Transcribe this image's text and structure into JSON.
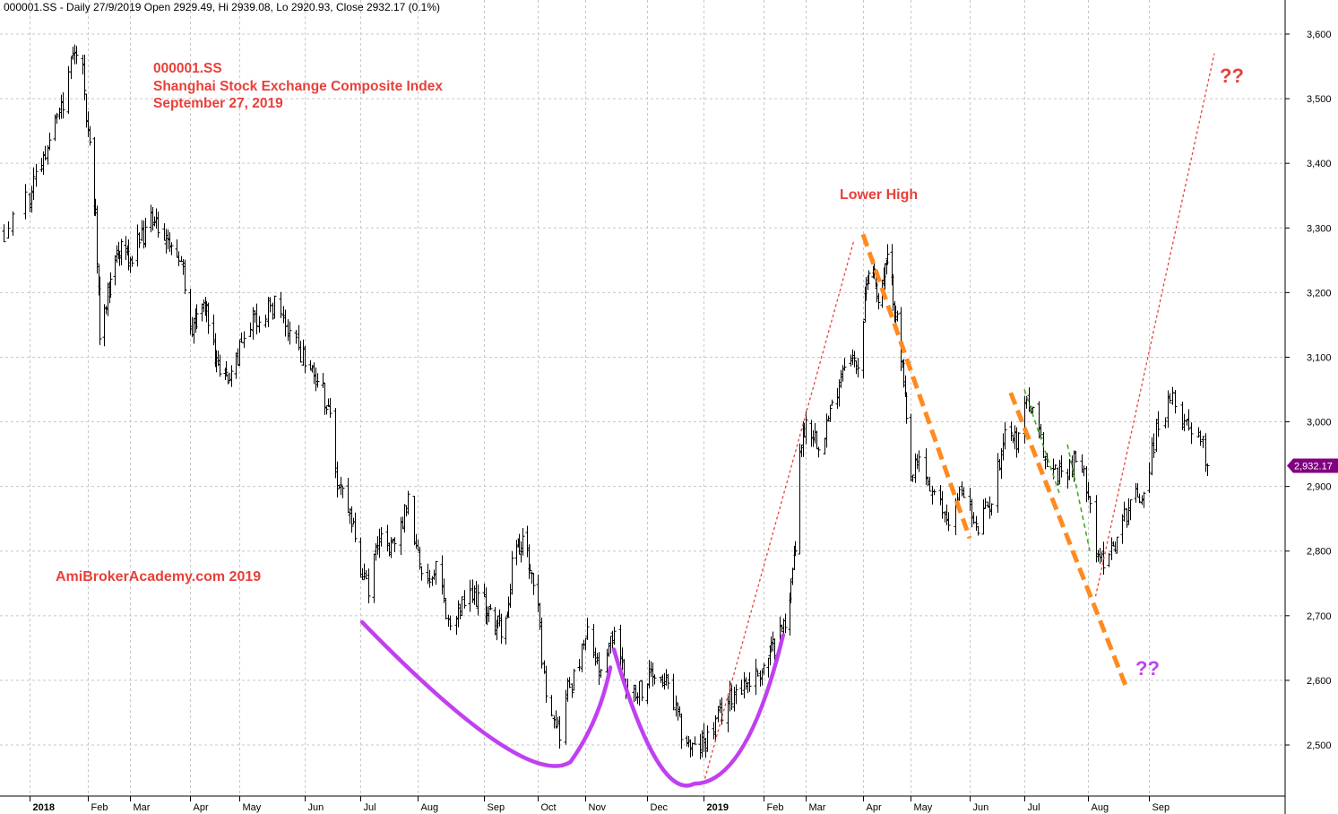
{
  "header": {
    "info": "000001.SS - Daily 27/9/2019 Open 2929.49, Hi 2939.08, Lo 2920.93, Close 2932.17 (0.1%)"
  },
  "annotations": {
    "title_lines": [
      "000001.SS",
      "Shanghai Stock Exchange Composite Index",
      "September 27, 2019"
    ],
    "watermark": "AmiBrokerAcademy.com  2019",
    "lower_high": "Lower High",
    "question_red": "??",
    "question_purple": "??"
  },
  "colors": {
    "candle": "#000000",
    "grid": "#c8c8c8",
    "annotation_red": "#e8403a",
    "trend_red": "#e8403a",
    "trend_orange": "#ff8a1f",
    "trend_green": "#44aa22",
    "pattern_purple": "#c040f0",
    "price_badge": "#800080"
  },
  "chart_data": {
    "type": "candlestick",
    "symbol": "000001.SS",
    "ylim": [
      2420,
      3620
    ],
    "y_ticks": [
      2500,
      2600,
      2700,
      2800,
      2900,
      3000,
      3100,
      3200,
      3300,
      3400,
      3500,
      3600
    ],
    "y_tick_labels": [
      "2,500",
      "2,600",
      "2,700",
      "2,800",
      "2,900",
      "3,000",
      "3,100",
      "3,200",
      "3,300",
      "3,400",
      "3,500",
      "3,600"
    ],
    "last_price": 2932.17,
    "last_price_label": "2,932.17",
    "x_ticks": [
      {
        "label": "2018",
        "date": "2018-01-02",
        "bold": true
      },
      {
        "label": "Feb",
        "date": "2018-02-01"
      },
      {
        "label": "Mar",
        "date": "2018-03-01"
      },
      {
        "label": "Apr",
        "date": "2018-04-02"
      },
      {
        "label": "May",
        "date": "2018-05-02"
      },
      {
        "label": "Jun",
        "date": "2018-06-01"
      },
      {
        "label": "Jul",
        "date": "2018-07-02"
      },
      {
        "label": "Aug",
        "date": "2018-08-01"
      },
      {
        "label": "Sep",
        "date": "2018-09-03"
      },
      {
        "label": "Oct",
        "date": "2018-10-08"
      },
      {
        "label": "Nov",
        "date": "2018-11-01"
      },
      {
        "label": "Dec",
        "date": "2018-12-03"
      },
      {
        "label": "2019",
        "date": "2019-01-02",
        "bold": true
      },
      {
        "label": "Feb",
        "date": "2019-02-01"
      },
      {
        "label": "Mar",
        "date": "2019-03-01"
      },
      {
        "label": "Apr",
        "date": "2019-04-01"
      },
      {
        "label": "May",
        "date": "2019-05-06"
      },
      {
        "label": "Jun",
        "date": "2019-06-03"
      },
      {
        "label": "Jul",
        "date": "2019-07-01"
      },
      {
        "label": "Aug",
        "date": "2019-08-01"
      },
      {
        "label": "Sep",
        "date": "2019-09-02"
      }
    ],
    "price_path": [
      [
        "2017-12-27",
        3290
      ],
      [
        "2018-01-02",
        3350
      ],
      [
        "2018-01-10",
        3420
      ],
      [
        "2018-01-18",
        3480
      ],
      [
        "2018-01-24",
        3560
      ],
      [
        "2018-01-29",
        3540
      ],
      [
        "2018-02-01",
        3450
      ],
      [
        "2018-02-06",
        3320
      ],
      [
        "2018-02-09",
        3140
      ],
      [
        "2018-02-12",
        3160
      ],
      [
        "2018-02-14",
        3200
      ],
      [
        "2018-02-22",
        3270
      ],
      [
        "2018-03-02",
        3260
      ],
      [
        "2018-03-12",
        3310
      ],
      [
        "2018-03-20",
        3290
      ],
      [
        "2018-03-28",
        3240
      ],
      [
        "2018-04-03",
        3140
      ],
      [
        "2018-04-10",
        3190
      ],
      [
        "2018-04-20",
        3070
      ],
      [
        "2018-04-27",
        3080
      ],
      [
        "2018-05-08",
        3150
      ],
      [
        "2018-05-18",
        3180
      ],
      [
        "2018-05-25",
        3140
      ],
      [
        "2018-06-01",
        3090
      ],
      [
        "2018-06-08",
        3070
      ],
      [
        "2018-06-13",
        3030
      ],
      [
        "2018-06-15",
        3010
      ],
      [
        "2018-06-19",
        2900
      ],
      [
        "2018-06-25",
        2870
      ],
      [
        "2018-07-02",
        2780
      ],
      [
        "2018-07-06",
        2740
      ],
      [
        "2018-07-13",
        2830
      ],
      [
        "2018-07-20",
        2800
      ],
      [
        "2018-07-27",
        2880
      ],
      [
        "2018-08-03",
        2750
      ],
      [
        "2018-08-10",
        2780
      ],
      [
        "2018-08-17",
        2680
      ],
      [
        "2018-08-24",
        2720
      ],
      [
        "2018-08-31",
        2730
      ],
      [
        "2018-09-07",
        2700
      ],
      [
        "2018-09-14",
        2680
      ],
      [
        "2018-09-19",
        2700
      ],
      [
        "2018-09-21",
        2790
      ],
      [
        "2018-09-28",
        2820
      ],
      [
        "2018-10-08",
        2720
      ],
      [
        "2018-10-11",
        2600
      ],
      [
        "2018-10-16",
        2550
      ],
      [
        "2018-10-19",
        2520
      ],
      [
        "2018-10-23",
        2590
      ],
      [
        "2018-10-26",
        2600
      ],
      [
        "2018-11-02",
        2670
      ],
      [
        "2018-11-09",
        2600
      ],
      [
        "2018-11-16",
        2680
      ],
      [
        "2018-11-23",
        2580
      ],
      [
        "2018-11-30",
        2590
      ],
      [
        "2018-12-07",
        2610
      ],
      [
        "2018-12-14",
        2590
      ],
      [
        "2018-12-21",
        2520
      ],
      [
        "2018-12-28",
        2490
      ],
      [
        "2019-01-04",
        2510
      ],
      [
        "2019-01-11",
        2550
      ],
      [
        "2019-01-18",
        2590
      ],
      [
        "2019-01-25",
        2600
      ],
      [
        "2019-02-01",
        2620
      ],
      [
        "2019-02-15",
        2690
      ],
      [
        "2019-02-22",
        2800
      ],
      [
        "2019-02-25",
        2960
      ],
      [
        "2019-03-01",
        3000
      ],
      [
        "2019-03-08",
        2970
      ],
      [
        "2019-03-15",
        3020
      ],
      [
        "2019-03-22",
        3100
      ],
      [
        "2019-03-29",
        3090
      ],
      [
        "2019-04-04",
        3230
      ],
      [
        "2019-04-08",
        3240
      ],
      [
        "2019-04-12",
        3190
      ],
      [
        "2019-04-19",
        3250
      ],
      [
        "2019-04-25",
        3170
      ],
      [
        "2019-04-30",
        3080
      ],
      [
        "2019-05-06",
        2910
      ],
      [
        "2019-05-10",
        2940
      ],
      [
        "2019-05-17",
        2880
      ],
      [
        "2019-05-24",
        2850
      ],
      [
        "2019-05-31",
        2900
      ],
      [
        "2019-06-06",
        2830
      ],
      [
        "2019-06-14",
        2880
      ],
      [
        "2019-06-21",
        2990
      ],
      [
        "2019-06-28",
        2970
      ],
      [
        "2019-07-01",
        3040
      ],
      [
        "2019-07-05",
        3010
      ],
      [
        "2019-07-12",
        2930
      ],
      [
        "2019-07-19",
        2920
      ],
      [
        "2019-07-26",
        2940
      ],
      [
        "2019-08-01",
        2900
      ],
      [
        "2019-08-06",
        2780
      ],
      [
        "2019-08-09",
        2790
      ],
      [
        "2019-08-16",
        2820
      ],
      [
        "2019-08-23",
        2880
      ],
      [
        "2019-08-30",
        2890
      ],
      [
        "2019-09-06",
        3000
      ],
      [
        "2019-09-12",
        3030
      ],
      [
        "2019-09-18",
        3000
      ],
      [
        "2019-09-24",
        2980
      ],
      [
        "2019-09-27",
        2932
      ]
    ],
    "trendlines": [
      {
        "color": "red",
        "style": "dotted",
        "from": [
          "2019-01-02",
          2440
        ],
        "to": [
          "2019-03-27",
          3280
        ]
      },
      {
        "color": "red",
        "style": "dotted",
        "from": [
          "2019-08-05",
          2730
        ],
        "to": [
          "2019-09-30",
          3570
        ]
      },
      {
        "color": "orange",
        "style": "dashed",
        "from": [
          "2019-04-01",
          3290
        ],
        "to": [
          "2019-06-03",
          2820
        ]
      },
      {
        "color": "orange",
        "style": "dashed",
        "from": [
          "2019-06-24",
          3045
        ],
        "to": [
          "2019-08-21",
          2590
        ]
      },
      {
        "color": "green",
        "style": "dashed",
        "from": [
          "2019-07-01",
          3050
        ],
        "to": [
          "2019-07-18",
          2890
        ]
      },
      {
        "color": "green",
        "style": "dashed",
        "from": [
          "2019-07-22",
          2965
        ],
        "to": [
          "2019-08-02",
          2800
        ]
      }
    ],
    "pattern": {
      "name": "double bottom",
      "color": "purple",
      "points": [
        [
          "2018-07-03",
          2690
        ],
        [
          "2018-10-11",
          2460
        ],
        [
          "2018-11-14",
          2620
        ],
        [
          "2018-12-28",
          2440
        ],
        [
          "2019-02-14",
          2670
        ]
      ]
    }
  }
}
